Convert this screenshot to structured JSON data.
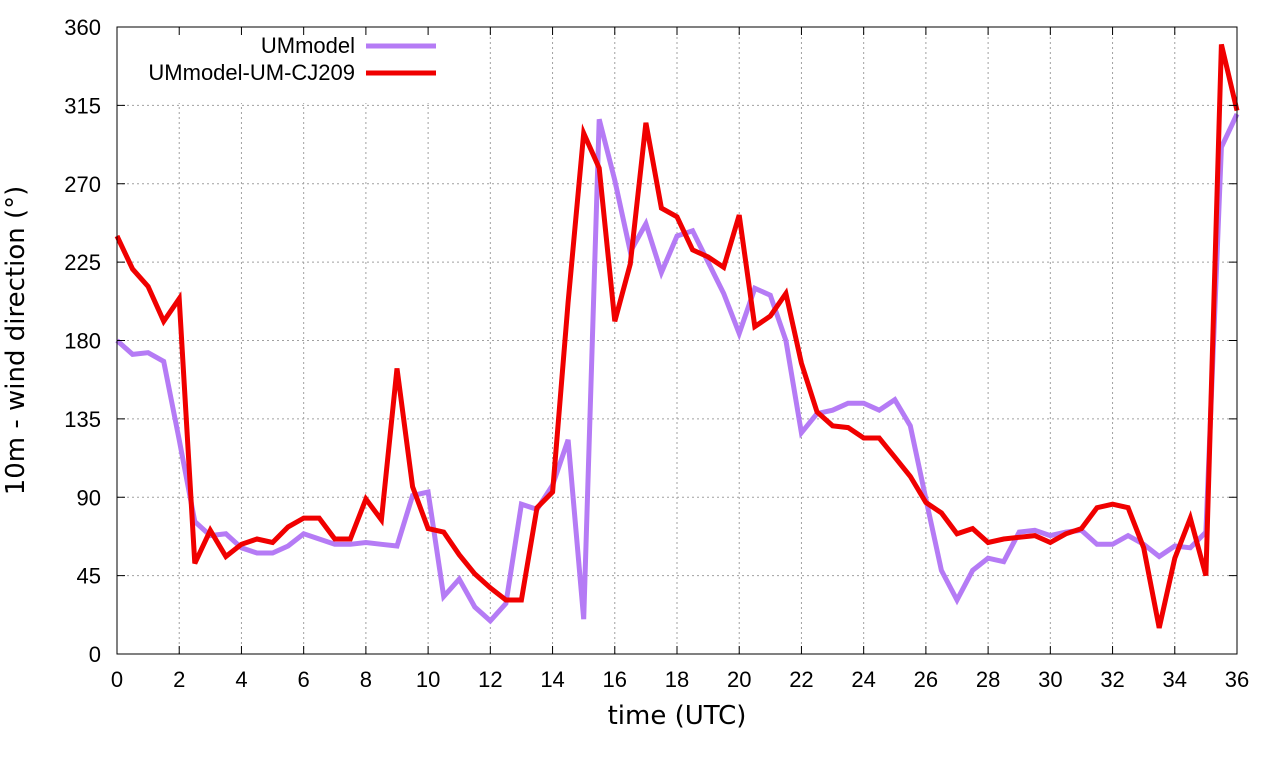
{
  "chart_data": {
    "type": "line",
    "xlabel": "time (UTC)",
    "ylabel": "10m - wind direction (°)",
    "xlim": [
      0,
      36
    ],
    "ylim": [
      0,
      360
    ],
    "xticks": [
      0,
      2,
      4,
      6,
      8,
      10,
      12,
      14,
      16,
      18,
      20,
      22,
      24,
      26,
      28,
      30,
      32,
      34,
      36
    ],
    "yticks": [
      0,
      45,
      90,
      135,
      180,
      225,
      270,
      315,
      360
    ],
    "grid": true,
    "legend_position": "top-left",
    "series": [
      {
        "name": "UMmodel",
        "color": "#b57bf5",
        "points": [
          [
            0,
            180
          ],
          [
            0.5,
            172
          ],
          [
            1,
            173
          ],
          [
            1.5,
            168
          ],
          [
            2,
            123
          ],
          [
            2.5,
            76
          ],
          [
            3,
            68
          ],
          [
            3.5,
            69
          ],
          [
            4,
            61
          ],
          [
            4.5,
            58
          ],
          [
            5,
            58
          ],
          [
            5.5,
            62
          ],
          [
            6,
            69
          ],
          [
            6.5,
            66
          ],
          [
            7,
            63
          ],
          [
            7.5,
            63
          ],
          [
            8,
            64
          ],
          [
            8.5,
            63
          ],
          [
            9,
            62
          ],
          [
            9.5,
            91
          ],
          [
            10,
            93
          ],
          [
            10.5,
            33
          ],
          [
            11,
            43
          ],
          [
            11.5,
            27
          ],
          [
            12,
            19
          ],
          [
            12.5,
            29
          ],
          [
            13,
            86
          ],
          [
            13.5,
            83
          ],
          [
            14,
            97
          ],
          [
            14.5,
            123
          ],
          [
            15,
            20
          ],
          [
            15.5,
            307
          ],
          [
            16,
            272
          ],
          [
            16.5,
            231
          ],
          [
            17,
            247
          ],
          [
            17.5,
            219
          ],
          [
            18,
            240
          ],
          [
            18.5,
            243
          ],
          [
            19,
            225
          ],
          [
            19.5,
            207
          ],
          [
            20,
            184
          ],
          [
            20.5,
            210
          ],
          [
            21,
            206
          ],
          [
            21.5,
            180
          ],
          [
            22,
            127
          ],
          [
            22.5,
            138
          ],
          [
            23,
            140
          ],
          [
            23.5,
            144
          ],
          [
            24,
            144
          ],
          [
            24.5,
            140
          ],
          [
            25,
            146
          ],
          [
            25.5,
            131
          ],
          [
            26,
            89
          ],
          [
            26.5,
            48
          ],
          [
            27,
            31
          ],
          [
            27.5,
            48
          ],
          [
            28,
            55
          ],
          [
            28.5,
            53
          ],
          [
            29,
            70
          ],
          [
            29.5,
            71
          ],
          [
            30,
            68
          ],
          [
            30.5,
            70
          ],
          [
            31,
            71
          ],
          [
            31.5,
            63
          ],
          [
            32,
            63
          ],
          [
            32.5,
            68
          ],
          [
            33,
            63
          ],
          [
            33.5,
            56
          ],
          [
            34,
            62
          ],
          [
            34.5,
            61
          ],
          [
            35,
            70
          ],
          [
            35.5,
            291
          ],
          [
            36,
            310
          ]
        ]
      },
      {
        "name": "UMmodel-UM-CJ209",
        "color": "#f00000",
        "points": [
          [
            0,
            240
          ],
          [
            0.5,
            221
          ],
          [
            1,
            211
          ],
          [
            1.5,
            191
          ],
          [
            2,
            204
          ],
          [
            2.5,
            52
          ],
          [
            3,
            71
          ],
          [
            3.5,
            56
          ],
          [
            4,
            63
          ],
          [
            4.5,
            66
          ],
          [
            5,
            64
          ],
          [
            5.5,
            73
          ],
          [
            6,
            78
          ],
          [
            6.5,
            78
          ],
          [
            7,
            66
          ],
          [
            7.5,
            66
          ],
          [
            8,
            89
          ],
          [
            8.5,
            77
          ],
          [
            9,
            164
          ],
          [
            9.5,
            96
          ],
          [
            10,
            72
          ],
          [
            10.5,
            70
          ],
          [
            11,
            57
          ],
          [
            11.5,
            46
          ],
          [
            12,
            38
          ],
          [
            12.5,
            31
          ],
          [
            13,
            31
          ],
          [
            13.5,
            84
          ],
          [
            14,
            93
          ],
          [
            14.5,
            202
          ],
          [
            15,
            299
          ],
          [
            15.5,
            279
          ],
          [
            16,
            191
          ],
          [
            16.5,
            224
          ],
          [
            17,
            305
          ],
          [
            17.5,
            256
          ],
          [
            18,
            251
          ],
          [
            18.5,
            232
          ],
          [
            19,
            228
          ],
          [
            19.5,
            222
          ],
          [
            20,
            252
          ],
          [
            20.5,
            188
          ],
          [
            21,
            194
          ],
          [
            21.5,
            207
          ],
          [
            22,
            167
          ],
          [
            22.5,
            139
          ],
          [
            23,
            131
          ],
          [
            23.5,
            130
          ],
          [
            24,
            124
          ],
          [
            24.5,
            124
          ],
          [
            25,
            113
          ],
          [
            25.5,
            102
          ],
          [
            26,
            87
          ],
          [
            26.5,
            81
          ],
          [
            27,
            69
          ],
          [
            27.5,
            72
          ],
          [
            28,
            64
          ],
          [
            28.5,
            66
          ],
          [
            29,
            67
          ],
          [
            29.5,
            68
          ],
          [
            30,
            64
          ],
          [
            30.5,
            69
          ],
          [
            31,
            72
          ],
          [
            31.5,
            84
          ],
          [
            32,
            86
          ],
          [
            32.5,
            84
          ],
          [
            33,
            61
          ],
          [
            33.5,
            15
          ],
          [
            34,
            55
          ],
          [
            34.5,
            78
          ],
          [
            35,
            45
          ],
          [
            35.5,
            350
          ],
          [
            36,
            312
          ]
        ]
      }
    ]
  }
}
